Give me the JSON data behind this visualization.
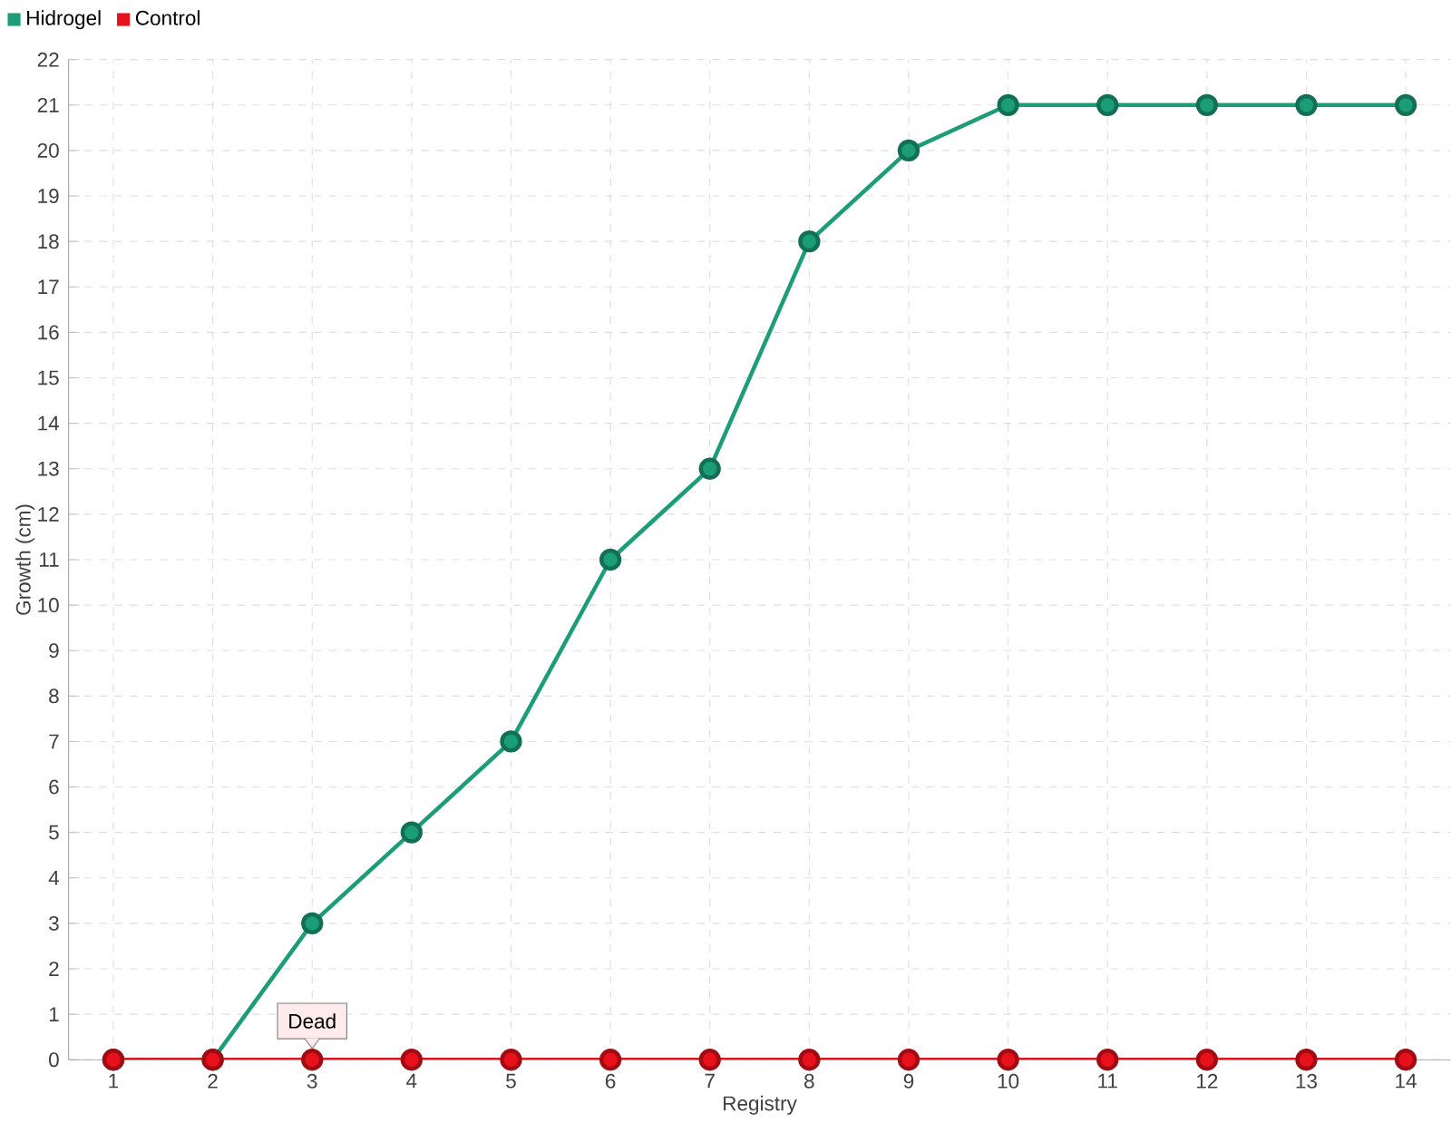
{
  "chart_data": {
    "type": "line",
    "xlabel": "Registry",
    "ylabel": "Growth (cm)",
    "categories": [
      "1",
      "2",
      "3",
      "4",
      "5",
      "6",
      "7",
      "8",
      "9",
      "10",
      "11",
      "12",
      "13",
      "14"
    ],
    "series": [
      {
        "name": "Hidrogel",
        "color": "#1b9e77",
        "values": [
          0,
          0,
          3,
          5,
          7,
          11,
          13,
          18,
          20,
          21,
          21,
          21,
          21,
          21
        ]
      },
      {
        "name": "Control",
        "color": "#e8101a",
        "values": [
          0,
          0,
          0,
          0,
          0,
          0,
          0,
          0,
          0,
          0,
          0,
          0,
          0,
          0
        ]
      }
    ],
    "ylim": [
      0,
      22
    ],
    "yticks": [
      0,
      1,
      2,
      3,
      4,
      5,
      6,
      7,
      8,
      9,
      10,
      11,
      12,
      13,
      14,
      15,
      16,
      17,
      18,
      19,
      20,
      21,
      22
    ],
    "grid": true,
    "legend": "top left",
    "marker": "circle",
    "line_style": "solid",
    "annotations": [
      {
        "text": "Dead",
        "x": "3",
        "y": 0
      }
    ]
  }
}
